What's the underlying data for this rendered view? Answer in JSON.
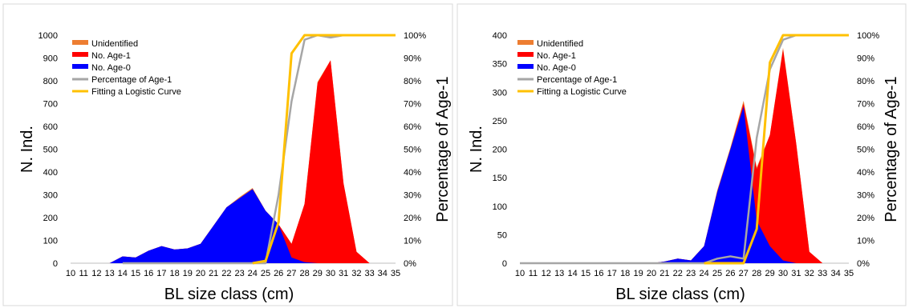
{
  "chart_data": [
    {
      "type": "area",
      "xlabel": "BL size class (cm)",
      "ylabel": "N. Ind.",
      "y2label": "Percentage of Age-1",
      "categories": [
        "10",
        "11",
        "12",
        "13",
        "14",
        "15",
        "16",
        "17",
        "18",
        "19",
        "20",
        "21",
        "22",
        "23",
        "24",
        "25",
        "26",
        "27",
        "28",
        "29",
        "30",
        "31",
        "32",
        "33",
        "34",
        "35"
      ],
      "ylim": [
        0,
        1000
      ],
      "yticks": [
        "0",
        "100",
        "200",
        "300",
        "400",
        "500",
        "600",
        "700",
        "800",
        "900",
        "1000"
      ],
      "y2lim": [
        0,
        100
      ],
      "y2ticks": [
        "0%",
        "10%",
        "20%",
        "30%",
        "40%",
        "50%",
        "60%",
        "70%",
        "80%",
        "90%",
        "100%"
      ],
      "legend_position": "top-left",
      "series": [
        {
          "name": "Unidentified",
          "kind": "area",
          "color": "#ED7D31",
          "axis": "left",
          "values": [
            0,
            0,
            0,
            0,
            0,
            0,
            0,
            0,
            0,
            0,
            0,
            0,
            0,
            5,
            5,
            0,
            0,
            0,
            0,
            5,
            0,
            0,
            0,
            0,
            0,
            0
          ]
        },
        {
          "name": "No. Age-1",
          "kind": "area",
          "color": "#FF0000",
          "axis": "left",
          "values": [
            0,
            0,
            0,
            0,
            0,
            0,
            0,
            0,
            0,
            0,
            0,
            0,
            0,
            0,
            0,
            0,
            0,
            60,
            255,
            790,
            890,
            350,
            50,
            0,
            0,
            0
          ]
        },
        {
          "name": "No. Age-0",
          "kind": "area",
          "color": "#0000FF",
          "axis": "left",
          "values": [
            0,
            0,
            0,
            0,
            30,
            25,
            55,
            75,
            60,
            65,
            85,
            165,
            245,
            285,
            325,
            230,
            170,
            25,
            5,
            0,
            0,
            0,
            0,
            0,
            0,
            0
          ]
        },
        {
          "name": "Percentage of Age-1",
          "kind": "line",
          "color": "#A6A6A6",
          "axis": "right",
          "values": [
            null,
            null,
            null,
            null,
            0,
            0,
            0,
            0,
            0,
            0,
            0,
            0,
            0,
            0,
            0,
            0,
            30,
            71,
            98,
            100,
            99,
            100,
            100,
            100,
            100,
            100
          ]
        },
        {
          "name": "Fitting a Logistic Curve",
          "kind": "line",
          "color": "#FFC000",
          "axis": "right",
          "values": [
            null,
            null,
            null,
            null,
            null,
            null,
            null,
            null,
            null,
            null,
            null,
            null,
            null,
            null,
            0,
            1,
            18,
            92,
            100,
            100,
            100,
            100,
            100,
            100,
            100,
            100
          ]
        }
      ]
    },
    {
      "type": "area",
      "xlabel": "BL size class (cm)",
      "ylabel": "N. Ind.",
      "y2label": "Percentage of Age-1",
      "categories": [
        "10",
        "11",
        "12",
        "13",
        "14",
        "15",
        "16",
        "17",
        "18",
        "19",
        "20",
        "21",
        "22",
        "23",
        "24",
        "25",
        "26",
        "27",
        "28",
        "29",
        "30",
        "31",
        "32",
        "33",
        "34",
        "35"
      ],
      "ylim": [
        0,
        400
      ],
      "yticks": [
        "0",
        "50",
        "100",
        "150",
        "200",
        "250",
        "300",
        "350",
        "400"
      ],
      "y2lim": [
        0,
        100
      ],
      "y2ticks": [
        "0%",
        "10%",
        "20%",
        "30%",
        "40%",
        "50%",
        "60%",
        "70%",
        "80%",
        "90%",
        "100%"
      ],
      "legend_position": "top-left",
      "series": [
        {
          "name": "Unidentified",
          "kind": "area",
          "color": "#ED7D31",
          "axis": "left",
          "values": [
            0,
            0,
            0,
            0,
            0,
            0,
            0,
            0,
            0,
            0,
            0,
            0,
            0,
            0,
            0,
            3,
            3,
            5,
            3,
            0,
            3,
            0,
            0,
            0,
            0,
            0
          ]
        },
        {
          "name": "No. Age-1",
          "kind": "area",
          "color": "#FF0000",
          "axis": "left",
          "values": [
            0,
            0,
            0,
            0,
            0,
            0,
            0,
            0,
            0,
            0,
            0,
            0,
            0,
            0,
            0,
            0,
            0,
            5,
            90,
            195,
            370,
            210,
            20,
            0,
            0,
            0
          ]
        },
        {
          "name": "No. Age-0",
          "kind": "area",
          "color": "#0000FF",
          "axis": "left",
          "values": [
            0,
            0,
            0,
            0,
            0,
            0,
            0,
            0,
            0,
            0,
            0,
            3,
            8,
            5,
            30,
            125,
            200,
            275,
            75,
            30,
            5,
            0,
            0,
            0,
            0,
            0
          ]
        },
        {
          "name": "Percentage of Age-1",
          "kind": "line",
          "color": "#A6A6A6",
          "axis": "right",
          "values": [
            0,
            0,
            0,
            0,
            0,
            0,
            0,
            0,
            0,
            0,
            0,
            0,
            0,
            0,
            0,
            2,
            3,
            2,
            55,
            85,
            98,
            100,
            100,
            100,
            100,
            100
          ]
        },
        {
          "name": "Fitting a Logistic Curve",
          "kind": "line",
          "color": "#FFC000",
          "axis": "right",
          "values": [
            null,
            null,
            null,
            null,
            null,
            null,
            null,
            null,
            null,
            null,
            null,
            null,
            null,
            null,
            0,
            0,
            0,
            0,
            15,
            88,
            100,
            100,
            100,
            100,
            100,
            100
          ]
        }
      ]
    }
  ]
}
